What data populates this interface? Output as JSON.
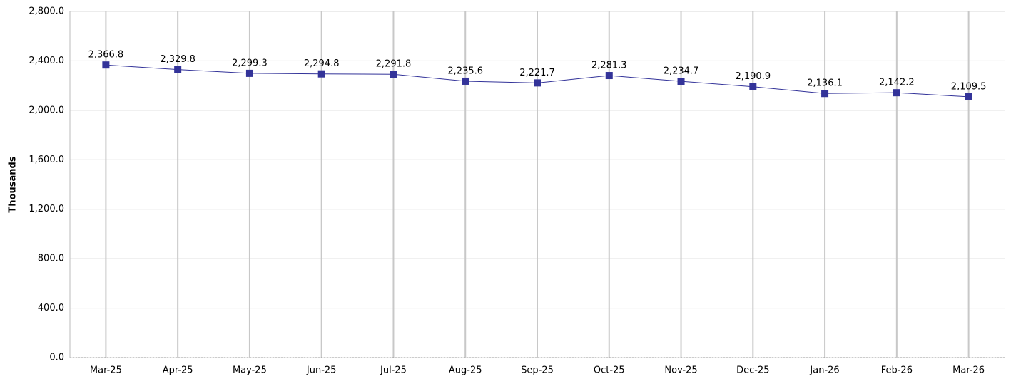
{
  "chart_data": {
    "type": "line",
    "y_label": "Thousands",
    "categories": [
      "Mar-25",
      "Apr-25",
      "May-25",
      "Jun-25",
      "Jul-25",
      "Aug-25",
      "Sep-25",
      "Oct-25",
      "Nov-25",
      "Dec-25",
      "Jan-26",
      "Feb-26",
      "Mar-26"
    ],
    "values": [
      2366.8,
      2329.8,
      2299.3,
      2294.8,
      2291.8,
      2235.6,
      2221.7,
      2281.3,
      2234.7,
      2190.9,
      2136.1,
      2142.2,
      2109.5
    ],
    "value_labels": [
      "2,366.8",
      "2,329.8",
      "2,299.3",
      "2,294.8",
      "2,291.8",
      "2,235.6",
      "2,221.7",
      "2,281.3",
      "2,234.7",
      "2,190.9",
      "2,136.1",
      "2,142.2",
      "2,109.5"
    ],
    "color": "#333399",
    "ylim": [
      0,
      2800
    ],
    "yticks": [
      {
        "value": 0,
        "label": "0.0"
      },
      {
        "value": 400,
        "label": "400.0"
      },
      {
        "value": 800,
        "label": "800.0"
      },
      {
        "value": 1200,
        "label": "1,200.0"
      },
      {
        "value": 1600,
        "label": "1,600.0"
      },
      {
        "value": 2000,
        "label": "2,000.0"
      },
      {
        "value": 2400,
        "label": "2,400.0"
      },
      {
        "value": 2800,
        "label": "2,800.0"
      }
    ],
    "grid": true
  }
}
